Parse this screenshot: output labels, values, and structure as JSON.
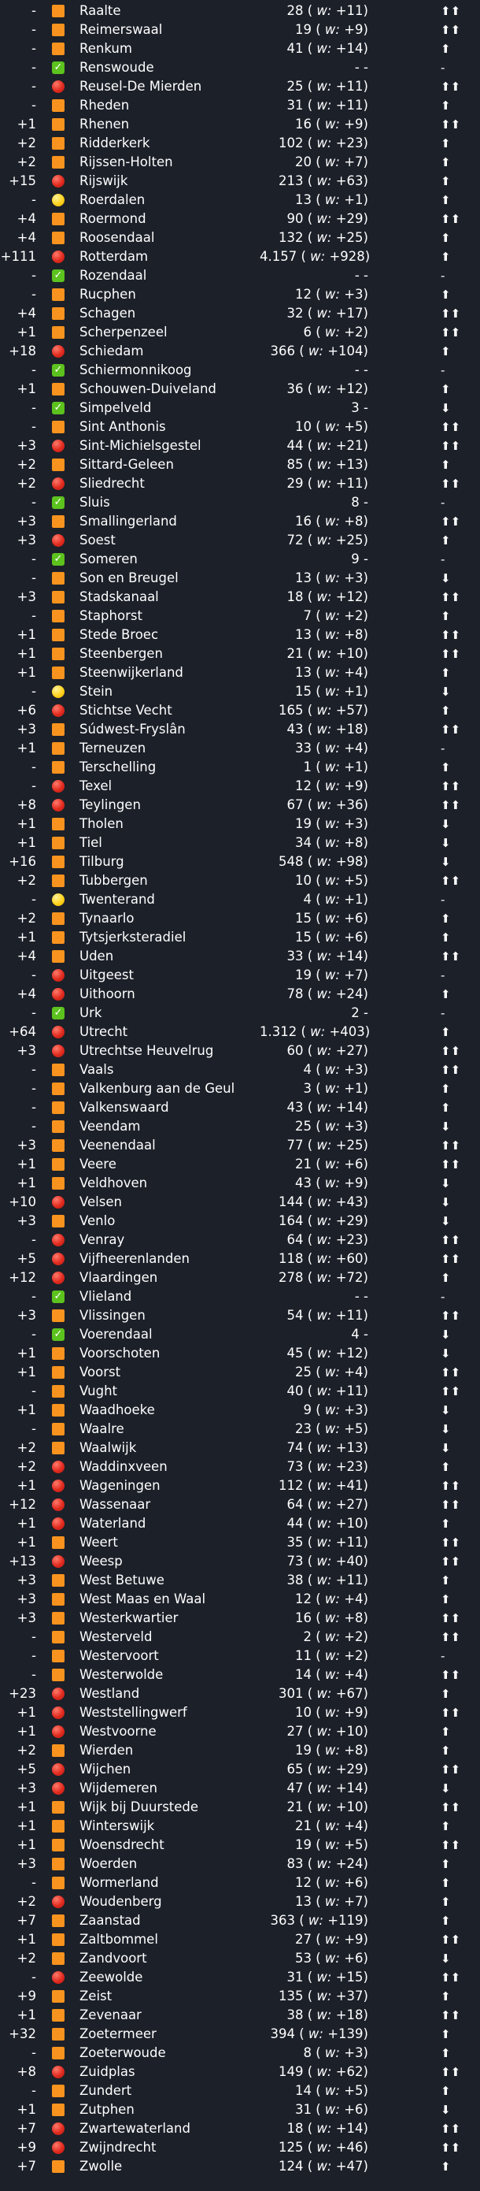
{
  "glyphs": {
    "up": "⬆",
    "upup": "⬆⬆",
    "down": "⬇",
    "dash": "-",
    "check": "✓"
  },
  "rows": [
    {
      "delta": "-",
      "status": "orange",
      "name": "Raalte",
      "value": "28",
      "week": "+11",
      "trend": "upup"
    },
    {
      "delta": "-",
      "status": "orange",
      "name": "Reimerswaal",
      "value": "19",
      "week": "+9",
      "trend": "upup"
    },
    {
      "delta": "-",
      "status": "orange",
      "name": "Renkum",
      "value": "41",
      "week": "+14",
      "trend": "up"
    },
    {
      "delta": "-",
      "status": "green",
      "name": "Renswoude",
      "value": "-",
      "week": "",
      "trend": "dash"
    },
    {
      "delta": "-",
      "status": "red",
      "name": "Reusel-De Mierden",
      "value": "25",
      "week": "+11",
      "trend": "upup"
    },
    {
      "delta": "-",
      "status": "orange",
      "name": "Rheden",
      "value": "31",
      "week": "+11",
      "trend": "up"
    },
    {
      "delta": "+1",
      "status": "orange",
      "name": "Rhenen",
      "value": "16",
      "week": "+9",
      "trend": "upup"
    },
    {
      "delta": "+2",
      "status": "orange",
      "name": "Ridderkerk",
      "value": "102",
      "week": "+23",
      "trend": "up"
    },
    {
      "delta": "+2",
      "status": "orange",
      "name": "Rijssen-Holten",
      "value": "20",
      "week": "+7",
      "trend": "up"
    },
    {
      "delta": "+15",
      "status": "red",
      "name": "Rijswijk",
      "value": "213",
      "week": "+63",
      "trend": "up"
    },
    {
      "delta": "-",
      "status": "yellow",
      "name": "Roerdalen",
      "value": "13",
      "week": "+1",
      "trend": "up"
    },
    {
      "delta": "+4",
      "status": "orange",
      "name": "Roermond",
      "value": "90",
      "week": "+29",
      "trend": "upup"
    },
    {
      "delta": "+4",
      "status": "orange",
      "name": "Roosendaal",
      "value": "132",
      "week": "+25",
      "trend": "up"
    },
    {
      "delta": "+111",
      "status": "red",
      "name": "Rotterdam",
      "value": "4.157",
      "week": "+928",
      "trend": "up"
    },
    {
      "delta": "-",
      "status": "green",
      "name": "Rozendaal",
      "value": "-",
      "week": "",
      "trend": "dash"
    },
    {
      "delta": "-",
      "status": "orange",
      "name": "Rucphen",
      "value": "12",
      "week": "+3",
      "trend": "up"
    },
    {
      "delta": "+4",
      "status": "orange",
      "name": "Schagen",
      "value": "32",
      "week": "+17",
      "trend": "upup"
    },
    {
      "delta": "+1",
      "status": "orange",
      "name": "Scherpenzeel",
      "value": "6",
      "week": "+2",
      "trend": "upup"
    },
    {
      "delta": "+18",
      "status": "red",
      "name": "Schiedam",
      "value": "366",
      "week": "+104",
      "trend": "up"
    },
    {
      "delta": "-",
      "status": "green",
      "name": "Schiermonnikoog",
      "value": "-",
      "week": "",
      "trend": "dash"
    },
    {
      "delta": "+1",
      "status": "orange",
      "name": "Schouwen-Duiveland",
      "value": "36",
      "week": "+12",
      "trend": "up"
    },
    {
      "delta": "-",
      "status": "green",
      "name": "Simpelveld",
      "value": "3",
      "week": "",
      "trend": "down"
    },
    {
      "delta": "-",
      "status": "orange",
      "name": "Sint Anthonis",
      "value": "10",
      "week": "+5",
      "trend": "upup"
    },
    {
      "delta": "+3",
      "status": "red",
      "name": "Sint-Michielsgestel",
      "value": "44",
      "week": "+21",
      "trend": "upup"
    },
    {
      "delta": "+2",
      "status": "orange",
      "name": "Sittard-Geleen",
      "value": "85",
      "week": "+13",
      "trend": "up"
    },
    {
      "delta": "+2",
      "status": "red",
      "name": "Sliedrecht",
      "value": "29",
      "week": "+11",
      "trend": "upup"
    },
    {
      "delta": "-",
      "status": "green",
      "name": "Sluis",
      "value": "8",
      "week": "",
      "trend": "dash"
    },
    {
      "delta": "+3",
      "status": "orange",
      "name": "Smallingerland",
      "value": "16",
      "week": "+8",
      "trend": "upup"
    },
    {
      "delta": "+3",
      "status": "red",
      "name": "Soest",
      "value": "72",
      "week": "+25",
      "trend": "up"
    },
    {
      "delta": "-",
      "status": "green",
      "name": "Someren",
      "value": "9",
      "week": "",
      "trend": "dash"
    },
    {
      "delta": "-",
      "status": "orange",
      "name": "Son en Breugel",
      "value": "13",
      "week": "+3",
      "trend": "down"
    },
    {
      "delta": "+3",
      "status": "orange",
      "name": "Stadskanaal",
      "value": "18",
      "week": "+12",
      "trend": "upup"
    },
    {
      "delta": "-",
      "status": "orange",
      "name": "Staphorst",
      "value": "7",
      "week": "+2",
      "trend": "up"
    },
    {
      "delta": "+1",
      "status": "orange",
      "name": "Stede Broec",
      "value": "13",
      "week": "+8",
      "trend": "upup"
    },
    {
      "delta": "+1",
      "status": "orange",
      "name": "Steenbergen",
      "value": "21",
      "week": "+10",
      "trend": "upup"
    },
    {
      "delta": "+1",
      "status": "orange",
      "name": "Steenwijkerland",
      "value": "13",
      "week": "+4",
      "trend": "up"
    },
    {
      "delta": "-",
      "status": "yellow",
      "name": "Stein",
      "value": "15",
      "week": "+1",
      "trend": "down"
    },
    {
      "delta": "+6",
      "status": "red",
      "name": "Stichtse Vecht",
      "value": "165",
      "week": "+57",
      "trend": "up"
    },
    {
      "delta": "+3",
      "status": "orange",
      "name": "Súdwest-Fryslân",
      "value": "43",
      "week": "+18",
      "trend": "upup"
    },
    {
      "delta": "+1",
      "status": "orange",
      "name": "Terneuzen",
      "value": "33",
      "week": "+4",
      "trend": "dash"
    },
    {
      "delta": "-",
      "status": "orange",
      "name": "Terschelling",
      "value": "1",
      "week": "+1",
      "trend": "up"
    },
    {
      "delta": "-",
      "status": "red",
      "name": "Texel",
      "value": "12",
      "week": "+9",
      "trend": "upup"
    },
    {
      "delta": "+8",
      "status": "red",
      "name": "Teylingen",
      "value": "67",
      "week": "+36",
      "trend": "upup"
    },
    {
      "delta": "+1",
      "status": "orange",
      "name": "Tholen",
      "value": "19",
      "week": "+3",
      "trend": "down"
    },
    {
      "delta": "+1",
      "status": "orange",
      "name": "Tiel",
      "value": "34",
      "week": "+8",
      "trend": "down"
    },
    {
      "delta": "+16",
      "status": "orange",
      "name": "Tilburg",
      "value": "548",
      "week": "+98",
      "trend": "down"
    },
    {
      "delta": "+2",
      "status": "orange",
      "name": "Tubbergen",
      "value": "10",
      "week": "+5",
      "trend": "upup"
    },
    {
      "delta": "-",
      "status": "yellow",
      "name": "Twenterand",
      "value": "4",
      "week": "+1",
      "trend": "dash"
    },
    {
      "delta": "+2",
      "status": "orange",
      "name": "Tynaarlo",
      "value": "15",
      "week": "+6",
      "trend": "up"
    },
    {
      "delta": "+1",
      "status": "orange",
      "name": "Tytsjerksteradiel",
      "value": "15",
      "week": "+6",
      "trend": "up"
    },
    {
      "delta": "+4",
      "status": "orange",
      "name": "Uden",
      "value": "33",
      "week": "+14",
      "trend": "upup"
    },
    {
      "delta": "-",
      "status": "red",
      "name": "Uitgeest",
      "value": "19",
      "week": "+7",
      "trend": "dash"
    },
    {
      "delta": "+4",
      "status": "red",
      "name": "Uithoorn",
      "value": "78",
      "week": "+24",
      "trend": "up"
    },
    {
      "delta": "-",
      "status": "green",
      "name": "Urk",
      "value": "2",
      "week": "",
      "trend": "dash"
    },
    {
      "delta": "+64",
      "status": "red",
      "name": "Utrecht",
      "value": "1.312",
      "week": "+403",
      "trend": "up"
    },
    {
      "delta": "+3",
      "status": "red",
      "name": "Utrechtse Heuvelrug",
      "value": "60",
      "week": "+27",
      "trend": "upup"
    },
    {
      "delta": "-",
      "status": "orange",
      "name": "Vaals",
      "value": "4",
      "week": "+3",
      "trend": "upup"
    },
    {
      "delta": "-",
      "status": "orange",
      "name": "Valkenburg aan de Geul",
      "value": "3",
      "week": "+1",
      "trend": "up"
    },
    {
      "delta": "-",
      "status": "orange",
      "name": "Valkenswaard",
      "value": "43",
      "week": "+14",
      "trend": "up"
    },
    {
      "delta": "-",
      "status": "orange",
      "name": "Veendam",
      "value": "25",
      "week": "+3",
      "trend": "down"
    },
    {
      "delta": "+3",
      "status": "orange",
      "name": "Veenendaal",
      "value": "77",
      "week": "+25",
      "trend": "upup"
    },
    {
      "delta": "+1",
      "status": "orange",
      "name": "Veere",
      "value": "21",
      "week": "+6",
      "trend": "upup"
    },
    {
      "delta": "+1",
      "status": "orange",
      "name": "Veldhoven",
      "value": "43",
      "week": "+9",
      "trend": "down"
    },
    {
      "delta": "+10",
      "status": "red",
      "name": "Velsen",
      "value": "144",
      "week": "+43",
      "trend": "down"
    },
    {
      "delta": "+3",
      "status": "orange",
      "name": "Venlo",
      "value": "164",
      "week": "+29",
      "trend": "down"
    },
    {
      "delta": "-",
      "status": "red",
      "name": "Venray",
      "value": "64",
      "week": "+23",
      "trend": "upup"
    },
    {
      "delta": "+5",
      "status": "red",
      "name": "Vijfheerenlanden",
      "value": "118",
      "week": "+60",
      "trend": "upup"
    },
    {
      "delta": "+12",
      "status": "red",
      "name": "Vlaardingen",
      "value": "278",
      "week": "+72",
      "trend": "up"
    },
    {
      "delta": "-",
      "status": "green",
      "name": "Vlieland",
      "value": "-",
      "week": "",
      "trend": "dash"
    },
    {
      "delta": "+3",
      "status": "orange",
      "name": "Vlissingen",
      "value": "54",
      "week": "+11",
      "trend": "upup"
    },
    {
      "delta": "-",
      "status": "green",
      "name": "Voerendaal",
      "value": "4",
      "week": "",
      "trend": "down"
    },
    {
      "delta": "+1",
      "status": "orange",
      "name": "Voorschoten",
      "value": "45",
      "week": "+12",
      "trend": "down"
    },
    {
      "delta": "+1",
      "status": "orange",
      "name": "Voorst",
      "value": "25",
      "week": "+4",
      "trend": "upup"
    },
    {
      "delta": "-",
      "status": "orange",
      "name": "Vught",
      "value": "40",
      "week": "+11",
      "trend": "upup"
    },
    {
      "delta": "+1",
      "status": "orange",
      "name": "Waadhoeke",
      "value": "9",
      "week": "+3",
      "trend": "down"
    },
    {
      "delta": "-",
      "status": "orange",
      "name": "Waalre",
      "value": "23",
      "week": "+5",
      "trend": "down"
    },
    {
      "delta": "+2",
      "status": "orange",
      "name": "Waalwijk",
      "value": "74",
      "week": "+13",
      "trend": "down"
    },
    {
      "delta": "+2",
      "status": "red",
      "name": "Waddinxveen",
      "value": "73",
      "week": "+23",
      "trend": "up"
    },
    {
      "delta": "+1",
      "status": "red",
      "name": "Wageningen",
      "value": "112",
      "week": "+41",
      "trend": "upup"
    },
    {
      "delta": "+12",
      "status": "red",
      "name": "Wassenaar",
      "value": "64",
      "week": "+27",
      "trend": "upup"
    },
    {
      "delta": "+1",
      "status": "red",
      "name": "Waterland",
      "value": "44",
      "week": "+10",
      "trend": "up"
    },
    {
      "delta": "+1",
      "status": "orange",
      "name": "Weert",
      "value": "35",
      "week": "+11",
      "trend": "upup"
    },
    {
      "delta": "+13",
      "status": "red",
      "name": "Weesp",
      "value": "73",
      "week": "+40",
      "trend": "upup"
    },
    {
      "delta": "+3",
      "status": "orange",
      "name": "West Betuwe",
      "value": "38",
      "week": "+11",
      "trend": "up"
    },
    {
      "delta": "+3",
      "status": "orange",
      "name": "West Maas en Waal",
      "value": "12",
      "week": "+4",
      "trend": "up"
    },
    {
      "delta": "+3",
      "status": "orange",
      "name": "Westerkwartier",
      "value": "16",
      "week": "+8",
      "trend": "upup"
    },
    {
      "delta": "-",
      "status": "orange",
      "name": "Westerveld",
      "value": "2",
      "week": "+2",
      "trend": "upup"
    },
    {
      "delta": "-",
      "status": "orange",
      "name": "Westervoort",
      "value": "11",
      "week": "+2",
      "trend": "dash"
    },
    {
      "delta": "-",
      "status": "orange",
      "name": "Westerwolde",
      "value": "14",
      "week": "+4",
      "trend": "upup"
    },
    {
      "delta": "+23",
      "status": "red",
      "name": "Westland",
      "value": "301",
      "week": "+67",
      "trend": "up"
    },
    {
      "delta": "+1",
      "status": "red",
      "name": "Weststellingwerf",
      "value": "10",
      "week": "+9",
      "trend": "upup"
    },
    {
      "delta": "+1",
      "status": "red",
      "name": "Westvoorne",
      "value": "27",
      "week": "+10",
      "trend": "up"
    },
    {
      "delta": "+2",
      "status": "orange",
      "name": "Wierden",
      "value": "19",
      "week": "+8",
      "trend": "up"
    },
    {
      "delta": "+5",
      "status": "red",
      "name": "Wijchen",
      "value": "65",
      "week": "+29",
      "trend": "upup"
    },
    {
      "delta": "+3",
      "status": "red",
      "name": "Wijdemeren",
      "value": "47",
      "week": "+14",
      "trend": "down"
    },
    {
      "delta": "+1",
      "status": "orange",
      "name": "Wijk bij Duurstede",
      "value": "21",
      "week": "+10",
      "trend": "upup"
    },
    {
      "delta": "+1",
      "status": "orange",
      "name": "Winterswijk",
      "value": "21",
      "week": "+4",
      "trend": "up"
    },
    {
      "delta": "+1",
      "status": "orange",
      "name": "Woensdrecht",
      "value": "19",
      "week": "+5",
      "trend": "upup"
    },
    {
      "delta": "+3",
      "status": "orange",
      "name": "Woerden",
      "value": "83",
      "week": "+24",
      "trend": "up"
    },
    {
      "delta": "-",
      "status": "orange",
      "name": "Wormerland",
      "value": "12",
      "week": "+6",
      "trend": "up"
    },
    {
      "delta": "+2",
      "status": "red",
      "name": "Woudenberg",
      "value": "13",
      "week": "+7",
      "trend": "up"
    },
    {
      "delta": "+7",
      "status": "orange",
      "name": "Zaanstad",
      "value": "363",
      "week": "+119",
      "trend": "up"
    },
    {
      "delta": "+1",
      "status": "orange",
      "name": "Zaltbommel",
      "value": "27",
      "week": "+9",
      "trend": "upup"
    },
    {
      "delta": "+2",
      "status": "orange",
      "name": "Zandvoort",
      "value": "53",
      "week": "+6",
      "trend": "down"
    },
    {
      "delta": "-",
      "status": "red",
      "name": "Zeewolde",
      "value": "31",
      "week": "+15",
      "trend": "upup"
    },
    {
      "delta": "+9",
      "status": "orange",
      "name": "Zeist",
      "value": "135",
      "week": "+37",
      "trend": "up"
    },
    {
      "delta": "+1",
      "status": "orange",
      "name": "Zevenaar",
      "value": "38",
      "week": "+18",
      "trend": "upup"
    },
    {
      "delta": "+32",
      "status": "orange",
      "name": "Zoetermeer",
      "value": "394",
      "week": "+139",
      "trend": "up"
    },
    {
      "delta": "-",
      "status": "orange",
      "name": "Zoeterwoude",
      "value": "8",
      "week": "+3",
      "trend": "up"
    },
    {
      "delta": "+8",
      "status": "red",
      "name": "Zuidplas",
      "value": "149",
      "week": "+62",
      "trend": "upup"
    },
    {
      "delta": "-",
      "status": "orange",
      "name": "Zundert",
      "value": "14",
      "week": "+5",
      "trend": "up"
    },
    {
      "delta": "+1",
      "status": "orange",
      "name": "Zutphen",
      "value": "31",
      "week": "+6",
      "trend": "down"
    },
    {
      "delta": "+7",
      "status": "red",
      "name": "Zwartewaterland",
      "value": "18",
      "week": "+14",
      "trend": "upup"
    },
    {
      "delta": "+9",
      "status": "red",
      "name": "Zwijndrecht",
      "value": "125",
      "week": "+46",
      "trend": "upup"
    },
    {
      "delta": "+7",
      "status": "orange",
      "name": "Zwolle",
      "value": "124",
      "week": "+47",
      "trend": "up"
    }
  ]
}
